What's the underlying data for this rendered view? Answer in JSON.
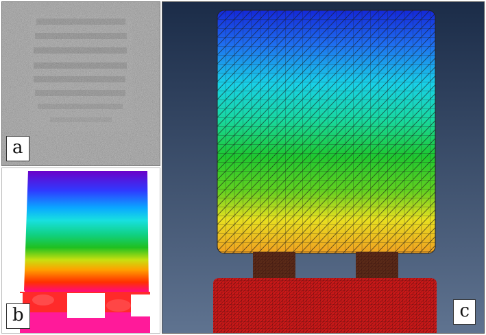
{
  "panels": {
    "a": {
      "label": "a"
    },
    "b": {
      "label": "b"
    },
    "c": {
      "label": "c"
    }
  },
  "colors": {
    "background_c": "#1d2f4a",
    "mesh_top": "#1a2fe0",
    "mesh_mid": "#19c39a",
    "mesh_bottom": "#f0a020",
    "base_red": "#c41414"
  }
}
